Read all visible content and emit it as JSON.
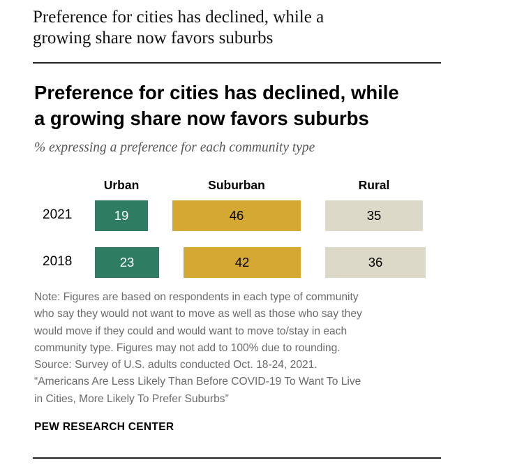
{
  "header": {
    "line1": "Preference for cities has declined, while a",
    "line2": "growing share now favors suburbs"
  },
  "colors": {
    "urban": "#2e7d63",
    "suburban": "#d4a833",
    "rural": "#dcd9c8",
    "rule": "#222222",
    "note": "#6b6b6b"
  },
  "chart_data": {
    "type": "bar",
    "stacked": true,
    "orientation": "horizontal",
    "title": "Preference for cities has declined, while a growing share now favors suburbs",
    "title_lines": [
      "Preference for cities has declined, while",
      "a growing share now favors suburbs"
    ],
    "subtitle": "% expressing a preference for each community type",
    "categories": [
      "2021",
      "2018"
    ],
    "series": [
      {
        "name": "Urban",
        "values": [
          19,
          23
        ],
        "label_color": "#ffffff"
      },
      {
        "name": "Suburban",
        "values": [
          46,
          42
        ],
        "label_color": "#000000"
      },
      {
        "name": "Rural",
        "values": [
          35,
          36
        ],
        "label_color": "#000000"
      }
    ],
    "grid": false,
    "legend": "top"
  },
  "note_lines": [
    "Note: Figures are based on respondents in each type of community",
    "who say they would not want to move as well as those who say they",
    "would move if they could and would want to move to/stay in each",
    "community type. Figures may not add to 100% due to rounding.",
    "Source: Survey of U.S. adults conducted Oct. 18-24, 2021.",
    "“Americans Are Less Likely Than Before COVID-19 To Want To Live",
    "in Cities, More Likely To Prefer Suburbs”"
  ],
  "source_credit": "PEW RESEARCH CENTER"
}
